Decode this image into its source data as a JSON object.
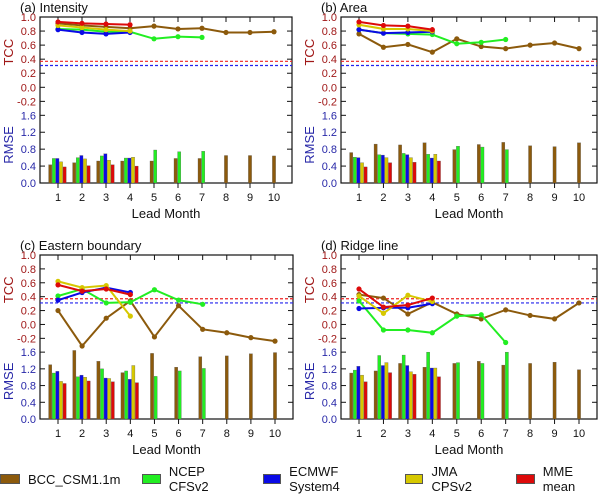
{
  "colors": {
    "BCC_CSM1.1m": "#8c5a0c",
    "NCEP CFSv2": "#22ee22",
    "ECMWF System4": "#0a0ae6",
    "JMA CPSv2": "#d6c800",
    "MME mean": "#dd0a0a",
    "tcc_axis": "#a01818",
    "rmse_axis": "#2828a8",
    "sig_red": "#ee2222",
    "sig_blue": "#2222ee"
  },
  "legend": [
    {
      "label": "BCC_CSM1.1m"
    },
    {
      "label": "NCEP CFSv2"
    },
    {
      "label": "ECMWF System4"
    },
    {
      "label": "JMA CPSv2"
    },
    {
      "label": "MME mean"
    }
  ],
  "chart_data": [
    {
      "type": "line+bar",
      "title": "(a) Intensity",
      "xlabel": "Lead Month",
      "ylabel_top": "TCC",
      "ylabel_bottom": "RMSE",
      "categories": [
        "1",
        "2",
        "3",
        "4",
        "5",
        "6",
        "7",
        "8",
        "9",
        "10"
      ],
      "tcc_ticks": [
        "1.0",
        "0.8",
        "0.6",
        "0.4",
        "0.2",
        "0.0",
        "-0.2"
      ],
      "rmse_ticks": [
        "0.0",
        "0.4",
        "0.8",
        "1.2",
        "1.6"
      ],
      "tcc_ylim": [
        -0.2,
        1.0
      ],
      "rmse_ylim": [
        0.0,
        1.6
      ],
      "significance_lines": {
        "red": 0.37,
        "blue": 0.31
      },
      "tcc": [
        {
          "name": "BCC_CSM1.1m",
          "values": [
            0.91,
            0.88,
            0.86,
            0.84,
            0.87,
            0.83,
            0.84,
            0.78,
            0.78,
            0.79
          ]
        },
        {
          "name": "NCEP CFSv2",
          "values": [
            0.83,
            0.82,
            0.79,
            0.79,
            0.69,
            0.72,
            0.71
          ]
        },
        {
          "name": "ECMWF System4",
          "values": [
            0.82,
            0.78,
            0.76,
            0.78
          ]
        },
        {
          "name": "JMA CPSv2",
          "values": [
            0.88,
            0.85,
            0.82,
            0.8
          ]
        },
        {
          "name": "MME mean",
          "values": [
            0.93,
            0.91,
            0.9,
            0.89
          ]
        }
      ],
      "rmse": [
        {
          "name": "BCC_CSM1.1m",
          "values": [
            0.43,
            0.48,
            0.52,
            0.52,
            0.52,
            0.58,
            0.58,
            0.65,
            0.65,
            0.64
          ]
        },
        {
          "name": "NCEP CFSv2",
          "values": [
            0.58,
            0.6,
            0.64,
            0.59,
            0.78,
            0.74,
            0.75
          ]
        },
        {
          "name": "ECMWF System4",
          "values": [
            0.58,
            0.65,
            0.69,
            0.59
          ]
        },
        {
          "name": "JMA CPSv2",
          "values": [
            0.5,
            0.57,
            0.54,
            0.61
          ]
        },
        {
          "name": "MME mean",
          "values": [
            0.38,
            0.41,
            0.43,
            0.4
          ]
        }
      ]
    },
    {
      "type": "line+bar",
      "title": "(b) Area",
      "xlabel": "Lead Month",
      "ylabel_top": "TCC",
      "ylabel_bottom": "RMSE",
      "categories": [
        "1",
        "2",
        "3",
        "4",
        "5",
        "6",
        "7",
        "8",
        "9",
        "10"
      ],
      "tcc_ticks": [
        "1.0",
        "0.8",
        "0.6",
        "0.4",
        "0.2",
        "0.0",
        "-0.2"
      ],
      "rmse_ticks": [
        "0.0",
        "0.4",
        "0.8",
        "1.2",
        "1.6"
      ],
      "tcc_ylim": [
        -0.2,
        1.0
      ],
      "rmse_ylim": [
        0.0,
        1.6
      ],
      "significance_lines": {
        "red": 0.37,
        "blue": 0.31
      },
      "tcc": [
        {
          "name": "BCC_CSM1.1m",
          "values": [
            0.76,
            0.57,
            0.61,
            0.5,
            0.69,
            0.58,
            0.55,
            0.6,
            0.63,
            0.55
          ]
        },
        {
          "name": "NCEP CFSv2",
          "values": [
            0.82,
            0.77,
            0.76,
            0.75,
            0.62,
            0.64,
            0.68
          ]
        },
        {
          "name": "ECMWF System4",
          "values": [
            0.82,
            0.77,
            0.78,
            0.79
          ]
        },
        {
          "name": "JMA CPSv2",
          "values": [
            0.89,
            0.83,
            0.83,
            0.8
          ]
        },
        {
          "name": "MME mean",
          "values": [
            0.93,
            0.88,
            0.87,
            0.82
          ]
        }
      ],
      "rmse": [
        {
          "name": "BCC_CSM1.1m",
          "values": [
            0.72,
            0.92,
            0.9,
            0.95,
            0.79,
            0.91,
            0.96,
            0.88,
            0.86,
            0.95
          ]
        },
        {
          "name": "NCEP CFSv2",
          "values": [
            0.61,
            0.67,
            0.7,
            0.68,
            0.87,
            0.85,
            0.79
          ]
        },
        {
          "name": "ECMWF System4",
          "values": [
            0.6,
            0.66,
            0.67,
            0.59
          ]
        },
        {
          "name": "JMA CPSv2",
          "values": [
            0.48,
            0.6,
            0.6,
            0.68
          ]
        },
        {
          "name": "MME mean",
          "values": [
            0.38,
            0.48,
            0.49,
            0.52
          ]
        }
      ]
    },
    {
      "type": "line+bar",
      "title": "(c) Eastern boundary",
      "xlabel": "Lead Month",
      "ylabel_top": "TCC",
      "ylabel_bottom": "RMSE",
      "categories": [
        "1",
        "2",
        "3",
        "4",
        "5",
        "6",
        "7",
        "8",
        "9",
        "10"
      ],
      "tcc_ticks": [
        "1.0",
        "0.8",
        "0.6",
        "0.4",
        "0.2",
        "0.0",
        "-0.2"
      ],
      "rmse_ticks": [
        "0.0",
        "0.4",
        "0.8",
        "1.2",
        "1.6"
      ],
      "tcc_ylim": [
        -0.2,
        1.0
      ],
      "rmse_ylim": [
        0.0,
        1.6
      ],
      "significance_lines": {
        "red": 0.37,
        "blue": 0.31
      },
      "tcc": [
        {
          "name": "BCC_CSM1.1m",
          "values": [
            0.2,
            -0.31,
            0.09,
            0.34,
            -0.18,
            0.27,
            -0.07,
            -0.12,
            -0.19,
            -0.24
          ]
        },
        {
          "name": "NCEP CFSv2",
          "values": [
            0.41,
            0.51,
            0.31,
            0.32,
            0.5,
            0.35,
            0.29
          ]
        },
        {
          "name": "ECMWF System4",
          "values": [
            0.35,
            0.46,
            0.53,
            0.46
          ]
        },
        {
          "name": "JMA CPSv2",
          "values": [
            0.62,
            0.53,
            0.56,
            0.12
          ]
        },
        {
          "name": "MME mean",
          "values": [
            0.57,
            0.48,
            0.51,
            0.43
          ]
        }
      ],
      "rmse": [
        {
          "name": "BCC_CSM1.1m",
          "values": [
            1.3,
            1.64,
            1.38,
            1.11,
            1.57,
            1.24,
            1.49,
            1.51,
            1.56,
            1.59
          ]
        },
        {
          "name": "NCEP CFSv2",
          "values": [
            1.1,
            1.01,
            1.2,
            1.15,
            1.02,
            1.15,
            1.21
          ]
        },
        {
          "name": "ECMWF System4",
          "values": [
            1.14,
            1.05,
            0.98,
            0.95
          ]
        },
        {
          "name": "JMA CPSv2",
          "values": [
            0.9,
            1.0,
            0.97,
            1.28
          ]
        },
        {
          "name": "MME mean",
          "values": [
            0.85,
            0.91,
            0.89,
            0.87
          ]
        }
      ]
    },
    {
      "type": "line+bar",
      "title": "(d) Ridge line",
      "xlabel": "Lead Month",
      "ylabel_top": "TCC",
      "ylabel_bottom": "RMSE",
      "categories": [
        "1",
        "2",
        "3",
        "4",
        "5",
        "6",
        "7",
        "8",
        "9",
        "10"
      ],
      "tcc_ticks": [
        "1.0",
        "0.8",
        "0.6",
        "0.4",
        "0.2",
        "0.0",
        "-0.2"
      ],
      "rmse_ticks": [
        "0.0",
        "0.4",
        "0.8",
        "1.2",
        "1.6"
      ],
      "tcc_ylim": [
        -0.2,
        1.0
      ],
      "rmse_ylim": [
        0.0,
        1.6
      ],
      "significance_lines": {
        "red": 0.37,
        "blue": 0.31
      },
      "tcc": [
        {
          "name": "BCC_CSM1.1m",
          "values": [
            0.43,
            0.38,
            0.15,
            0.32,
            0.15,
            0.08,
            0.21,
            0.13,
            0.08,
            0.31
          ]
        },
        {
          "name": "NCEP CFSv2",
          "values": [
            0.34,
            -0.08,
            -0.08,
            -0.12,
            0.12,
            0.14,
            -0.26
          ]
        },
        {
          "name": "ECMWF System4",
          "values": [
            0.23,
            0.24,
            0.24,
            0.3
          ]
        },
        {
          "name": "JMA CPSv2",
          "values": [
            0.41,
            0.16,
            0.42,
            0.33
          ]
        },
        {
          "name": "MME mean",
          "values": [
            0.51,
            0.25,
            0.28,
            0.38
          ]
        }
      ],
      "rmse": [
        {
          "name": "BCC_CSM1.1m",
          "values": [
            1.1,
            1.15,
            1.33,
            1.24,
            1.33,
            1.38,
            1.29,
            1.33,
            1.36,
            1.18
          ]
        },
        {
          "name": "NCEP CFSv2",
          "values": [
            1.17,
            1.52,
            1.53,
            1.6,
            1.35,
            1.33,
            1.6
          ]
        },
        {
          "name": "ECMWF System4",
          "values": [
            1.26,
            1.28,
            1.28,
            1.22
          ]
        },
        {
          "name": "JMA CPSv2",
          "values": [
            1.05,
            1.35,
            1.13,
            1.22
          ]
        },
        {
          "name": "MME mean",
          "values": [
            0.89,
            1.11,
            1.07,
            1.01
          ]
        }
      ]
    }
  ]
}
